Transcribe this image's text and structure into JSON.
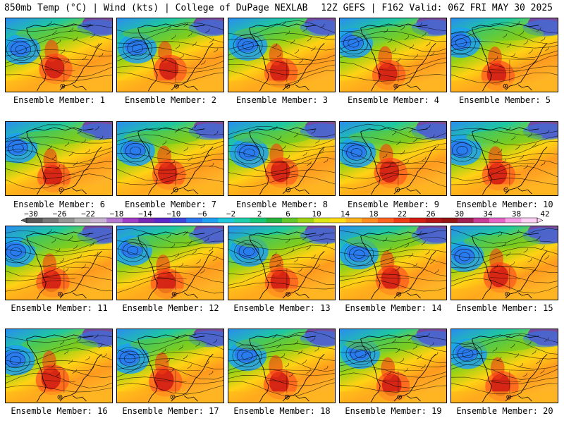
{
  "header": {
    "left": "850mb Temp (°C) | Wind (kts) | College of DuPage NEXLAB",
    "right": "12Z GEFS | F162 Valid: 06Z FRI MAY 30 2025"
  },
  "panels": [
    {
      "label": "Ensemble Member: 1"
    },
    {
      "label": "Ensemble Member: 2"
    },
    {
      "label": "Ensemble Member: 3"
    },
    {
      "label": "Ensemble Member: 4"
    },
    {
      "label": "Ensemble Member: 5"
    },
    {
      "label": "Ensemble Member: 6"
    },
    {
      "label": "Ensemble Member: 7"
    },
    {
      "label": "Ensemble Member: 8"
    },
    {
      "label": "Ensemble Member: 9"
    },
    {
      "label": "Ensemble Member: 10"
    },
    {
      "label": "Ensemble Member: 11"
    },
    {
      "label": "Ensemble Member: 12"
    },
    {
      "label": "Ensemble Member: 13"
    },
    {
      "label": "Ensemble Member: 14"
    },
    {
      "label": "Ensemble Member: 15"
    },
    {
      "label": "Ensemble Member: 16"
    },
    {
      "label": "Ensemble Member: 17"
    },
    {
      "label": "Ensemble Member: 18"
    },
    {
      "label": "Ensemble Member: 19"
    },
    {
      "label": "Ensemble Member: 20"
    }
  ],
  "colorbar": {
    "tick_labels": [
      "−30",
      "−26",
      "−22",
      "−18",
      "−14",
      "−10",
      "−6",
      "−2",
      "2",
      "6",
      "10",
      "14",
      "18",
      "22",
      "26",
      "30",
      "34",
      "38",
      "42"
    ],
    "colors": [
      "#5a5a5a",
      "#787878",
      "#969696",
      "#b4b4b4",
      "#c8b4d2",
      "#b478d2",
      "#a03cc8",
      "#7828b4",
      "#5a28c8",
      "#3c46dc",
      "#2a78f0",
      "#1ea0f0",
      "#1ec8dc",
      "#1ecdaa",
      "#14c878",
      "#28b43c",
      "#64c828",
      "#a0d214",
      "#dce614",
      "#ffdc14",
      "#ffb41e",
      "#ff8c1e",
      "#ff641e",
      "#f03c14",
      "#d21e14",
      "#b41414",
      "#961414",
      "#a01e50",
      "#c83c96",
      "#e664c8",
      "#f5a0e6",
      "#ffd2f5"
    ]
  }
}
